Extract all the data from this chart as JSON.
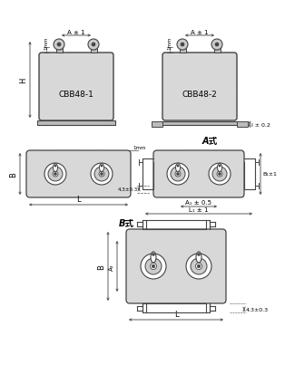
{
  "bg_color": "#ffffff",
  "line_color": "#444444",
  "fill_color": "#d8d8d8",
  "text_color": "#000000",
  "label_cbb48_1": "CBB48-1",
  "label_cbb48_2": "CBB48-2",
  "label_A_style": "A式",
  "label_B_style": "B式",
  "dim_A1": "A ± 1",
  "dim_43": "4.3±0.3",
  "dim_A1_05": "A₁ ± 0.5",
  "dim_L1_1": "L₁ ± 1",
  "dim_A2": "A₂",
  "dim_l02": "l ± 0.2",
  "dim_B1_1": "B₁±1"
}
